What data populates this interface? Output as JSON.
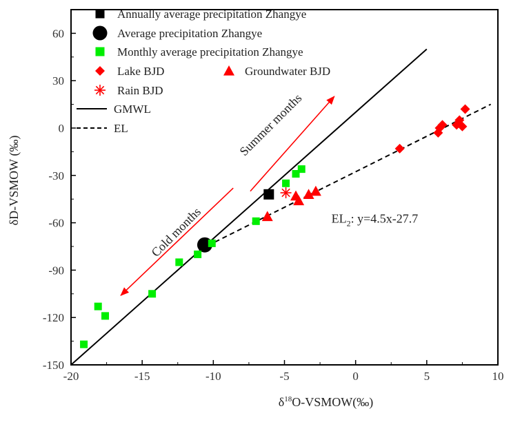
{
  "chart_data": {
    "type": "scatter",
    "xlabel": "δ18O-VSMOW(‰)",
    "xlabel_main": "δ",
    "xlabel_sup": "18",
    "xlabel_rest": "O-VSMOW(‰)",
    "ylabel": "δD-VSMOW (‰)",
    "xlim": [
      -20,
      10
    ],
    "ylim": [
      -150,
      75
    ],
    "xticks": [
      -20,
      -15,
      -10,
      -5,
      0,
      5,
      10
    ],
    "yticks": [
      -150,
      -120,
      -90,
      -60,
      -30,
      0,
      30,
      60
    ],
    "grid": false,
    "legend_position": "top-left",
    "series": [
      {
        "name": "Annually average precipitation Zhangye",
        "marker": "square",
        "color": "#000000",
        "points": [
          [
            -6.1,
            -42
          ]
        ]
      },
      {
        "name": "Average precipitation Zhangye",
        "marker": "circle",
        "color": "#000000",
        "points": [
          [
            -10.6,
            -74
          ]
        ]
      },
      {
        "name": "Monthly average precipitation Zhangye",
        "marker": "square",
        "color": "#00ee00",
        "points": [
          [
            -19.1,
            -137
          ],
          [
            -18.1,
            -113
          ],
          [
            -17.6,
            -119
          ],
          [
            -14.3,
            -105
          ],
          [
            -12.4,
            -85
          ],
          [
            -11.1,
            -80
          ],
          [
            -10.1,
            -73
          ],
          [
            -7.0,
            -59
          ],
          [
            -4.9,
            -35
          ],
          [
            -4.2,
            -29
          ],
          [
            -3.8,
            -26
          ]
        ]
      },
      {
        "name": "Lake BJD",
        "marker": "diamond",
        "color": "#ff0000",
        "points": [
          [
            3.1,
            -13
          ],
          [
            5.8,
            -3
          ],
          [
            5.9,
            0
          ],
          [
            6.1,
            2
          ],
          [
            7.1,
            2
          ],
          [
            7.3,
            5
          ],
          [
            7.5,
            1
          ],
          [
            7.7,
            12
          ]
        ]
      },
      {
        "name": "Groundwater BJD",
        "marker": "triangle",
        "color": "#ff0000",
        "points": [
          [
            -6.2,
            -56
          ],
          [
            -4.2,
            -43
          ],
          [
            -4.0,
            -46
          ],
          [
            -3.3,
            -42
          ],
          [
            -2.8,
            -40
          ]
        ]
      },
      {
        "name": "Rain BJD",
        "marker": "asterisk",
        "color": "#ff0000",
        "points": [
          [
            -4.9,
            -41
          ]
        ]
      }
    ],
    "lines": [
      {
        "name": "GMWL",
        "style": "solid",
        "color": "#000000",
        "slope": 8,
        "intercept": 10,
        "x": [
          -20,
          5
        ]
      },
      {
        "name": "EL",
        "style": "dashed",
        "color": "#000000",
        "slope": 4.5,
        "intercept": -27.7,
        "x": [
          -10.4,
          9.5
        ]
      }
    ],
    "legend": [
      {
        "label": "Annually average precipitation  Zhangye",
        "marker": "square",
        "color": "#000000"
      },
      {
        "label": "Average precipitation  Zhangye",
        "marker": "circle",
        "color": "#000000"
      },
      {
        "label": "Monthly average precipitation  Zhangye",
        "marker": "square",
        "color": "#00ee00"
      },
      {
        "label": "Lake  BJD",
        "marker": "diamond",
        "color": "#ff0000"
      },
      {
        "label": "Groundwater  BJD",
        "marker": "triangle",
        "color": "#ff0000"
      },
      {
        "label": "Rain  BJD",
        "marker": "asterisk",
        "color": "#ff0000"
      },
      {
        "label": "GMWL",
        "marker": "solid-line",
        "color": "#000000"
      },
      {
        "label": "EL",
        "marker": "dashed-line",
        "color": "#000000"
      }
    ],
    "annotations": {
      "summer": "Summer months",
      "cold": "Cold months",
      "el2_prefix": "EL",
      "el2_sub": "2",
      "el2_eq": ": y=4.5x-27.7"
    },
    "arrow_color": "#ff0000"
  }
}
